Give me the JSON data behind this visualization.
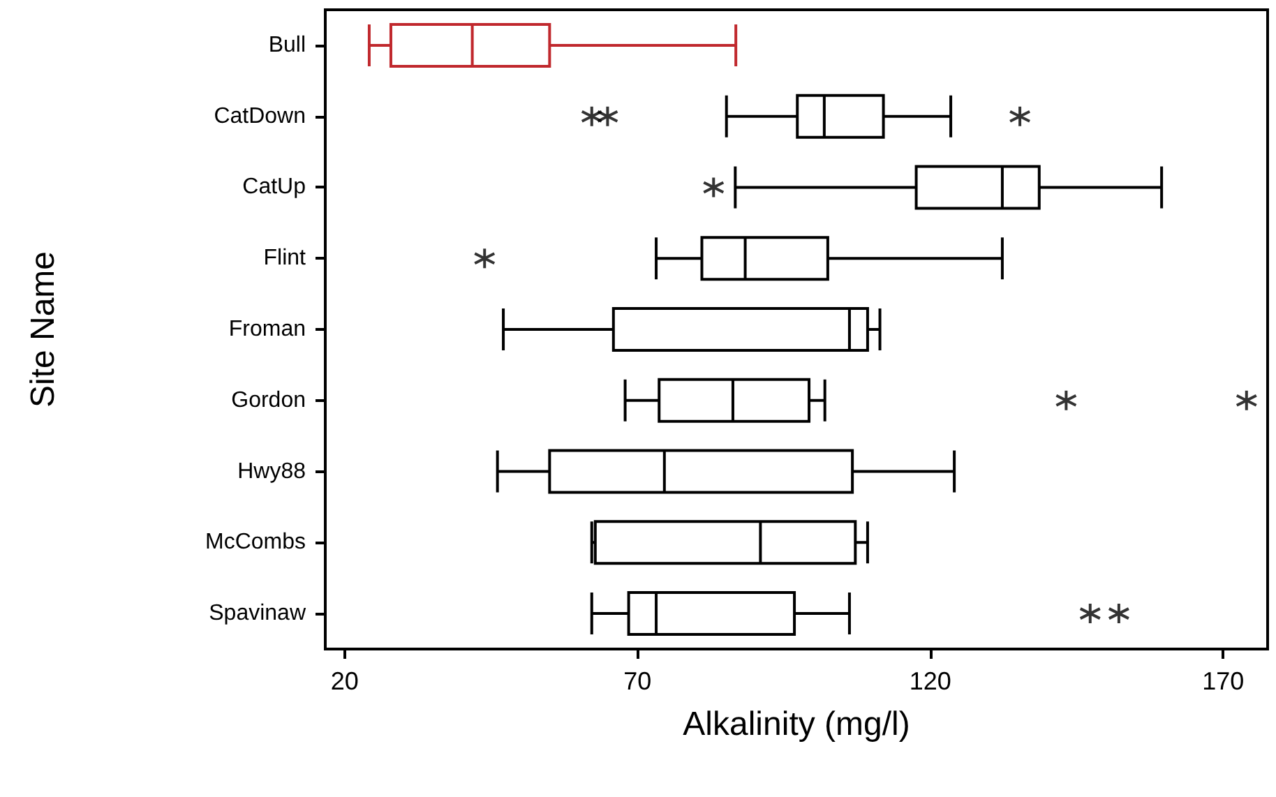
{
  "chart_data": {
    "type": "box",
    "orientation": "horizontal",
    "xlabel": "Alkalinity (mg/l)",
    "ylabel": "Site Name",
    "categories": [
      "Bull",
      "CatDown",
      "CatUp",
      "Flint",
      "Froman",
      "Gordon",
      "Hwy88",
      "McCombs",
      "Spavinaw"
    ],
    "colors": [
      "#c0282d",
      "#000000",
      "#000000",
      "#000000",
      "#000000",
      "#000000",
      "#000000",
      "#000000",
      "#000000"
    ],
    "boxes": [
      {
        "low": 24.2,
        "q1": 27.9,
        "median": 41.8,
        "q3": 55.0,
        "high": 86.8
      },
      {
        "low": 85.2,
        "q1": 97.3,
        "median": 101.9,
        "q3": 112.0,
        "high": 123.5,
        "outliers": [
          62.2,
          64.9,
          135.3
        ]
      },
      {
        "low": 86.7,
        "q1": 117.6,
        "median": 132.3,
        "q3": 138.6,
        "high": 159.5,
        "outliers": [
          83.0
        ]
      },
      {
        "low": 73.2,
        "q1": 81.0,
        "median": 88.4,
        "q3": 102.5,
        "high": 132.3,
        "outliers": [
          43.9
        ]
      },
      {
        "low": 47.1,
        "q1": 65.9,
        "median": 106.2,
        "q3": 109.3,
        "high": 111.4
      },
      {
        "low": 67.9,
        "q1": 73.7,
        "median": 86.3,
        "q3": 99.3,
        "high": 102.0,
        "outliers": [
          143.2,
          174.0
        ]
      },
      {
        "low": 46.1,
        "q1": 55.0,
        "median": 74.6,
        "q3": 106.7,
        "high": 124.1
      },
      {
        "low": 62.2,
        "q1": 62.8,
        "median": 91.0,
        "q3": 107.2,
        "high": 109.3
      },
      {
        "low": 62.2,
        "q1": 68.5,
        "median": 73.2,
        "q3": 96.8,
        "high": 106.2,
        "outliers": [
          147.3,
          152.2
        ]
      }
    ],
    "marker": "cross",
    "grid": false,
    "xlim": [
      16.7,
      177.6
    ],
    "xticks": [
      20,
      70,
      120,
      170
    ]
  }
}
